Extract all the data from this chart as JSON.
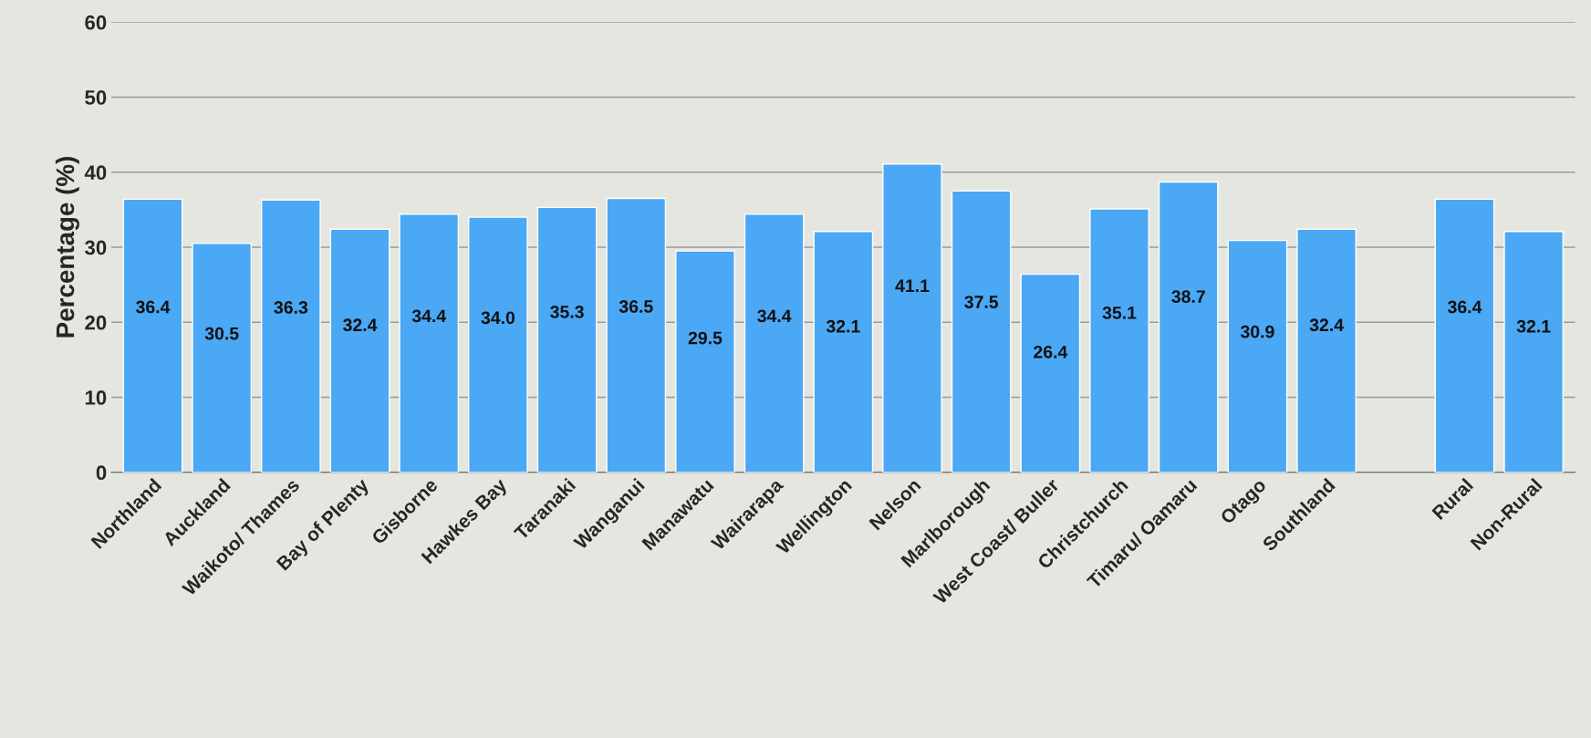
{
  "chart_data": {
    "type": "bar",
    "ylabel": "Percentage (%)",
    "categories": [
      "Northland",
      "Auckland",
      "Waikoto/ Thames",
      "Bay of Plenty",
      "Gisborne",
      "Hawkes Bay",
      "Taranaki",
      "Wanganui",
      "Manawatu",
      "Wairarapa",
      "Wellington",
      "Nelson",
      "Marlborough",
      "West Coast/ Buller",
      "Christchurch",
      "Timaru/ Oamaru",
      "Otago",
      "Southland",
      null,
      "Rural",
      "Non-Rural"
    ],
    "values": [
      36.4,
      30.5,
      36.3,
      32.4,
      34.4,
      34.0,
      35.3,
      36.5,
      29.5,
      34.4,
      32.1,
      41.1,
      37.5,
      26.4,
      35.1,
      38.7,
      30.9,
      32.4,
      null,
      36.4,
      32.1
    ],
    "value_labels": [
      "36.4",
      "30.5",
      "36.3",
      "32.4",
      "34.4",
      "34.0",
      "35.3",
      "36.5",
      "29.5",
      "34.4",
      "32.1",
      "41.1",
      "37.5",
      "26.4",
      "35.1",
      "38.7",
      "30.9",
      "32.4",
      null,
      "36.4",
      "32.1"
    ],
    "color": "#4aa8f5",
    "ylim": [
      0,
      60
    ],
    "yticks": [
      0,
      10,
      20,
      30,
      40,
      50,
      60
    ],
    "grid": "y"
  }
}
